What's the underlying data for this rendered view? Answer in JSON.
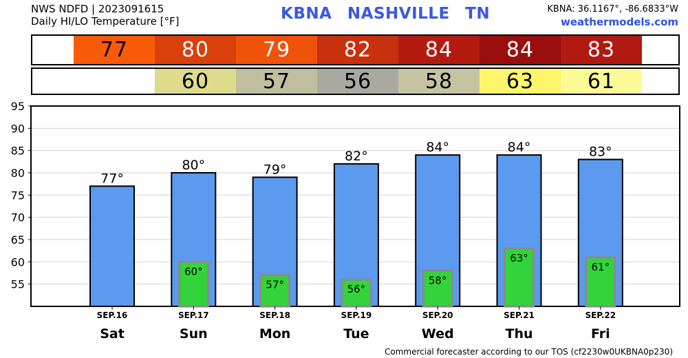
{
  "header": {
    "line1": "NWS NDFD | 2023091615",
    "line2": "Daily HI/LO Temperature [°F]",
    "station": "KBNA NASHVILLE TN",
    "coords": "KBNA: 36.1167°, -86.6833°W",
    "site": "weathermodels.com"
  },
  "hi_row": [
    {
      "value": "77",
      "color": "#f95a08"
    },
    {
      "value": "80",
      "color": "#d9400c"
    },
    {
      "value": "79",
      "color": "#f0520a"
    },
    {
      "value": "82",
      "color": "#c8300e"
    },
    {
      "value": "84",
      "color": "#b41b10"
    },
    {
      "value": "84",
      "color": "#9a0e0e"
    },
    {
      "value": "83",
      "color": "#b01a12"
    }
  ],
  "lo_row": [
    {
      "value": "60",
      "color": "#dedb8c"
    },
    {
      "value": "57",
      "color": "#bfbf9f"
    },
    {
      "value": "56",
      "color": "#a9a9a1"
    },
    {
      "value": "58",
      "color": "#c5c4a2"
    },
    {
      "value": "63",
      "color": "#fdf66b"
    },
    {
      "value": "61",
      "color": "#fdfb95"
    }
  ],
  "chart_data": {
    "type": "bar",
    "categories": [
      "Sat",
      "Sun",
      "Mon",
      "Tue",
      "Wed",
      "Thu",
      "Fri"
    ],
    "dates": [
      "SEP.16",
      "SEP.17",
      "SEP.18",
      "SEP.19",
      "SEP.20",
      "SEP.21",
      "SEP.22"
    ],
    "series": [
      {
        "values": [
          77,
          80,
          79,
          82,
          84,
          84,
          83
        ],
        "labels": [
          "77°",
          "80°",
          "79°",
          "82°",
          "84°",
          "84°",
          "83°"
        ],
        "color": "#5b9aef"
      },
      {
        "values": [
          null,
          60,
          57,
          56,
          58,
          63,
          61
        ],
        "labels": [
          "",
          "60°",
          "57°",
          "56°",
          "58°",
          "63°",
          "61°"
        ],
        "color": "#33d43b"
      }
    ],
    "ylim": [
      50,
      95
    ],
    "yticks": [
      55,
      60,
      65,
      70,
      75,
      80,
      85,
      90,
      95
    ],
    "grid": true
  },
  "footer": "Commercial forecaster according to our TOS (cf2230w0UKBNA0p230)"
}
